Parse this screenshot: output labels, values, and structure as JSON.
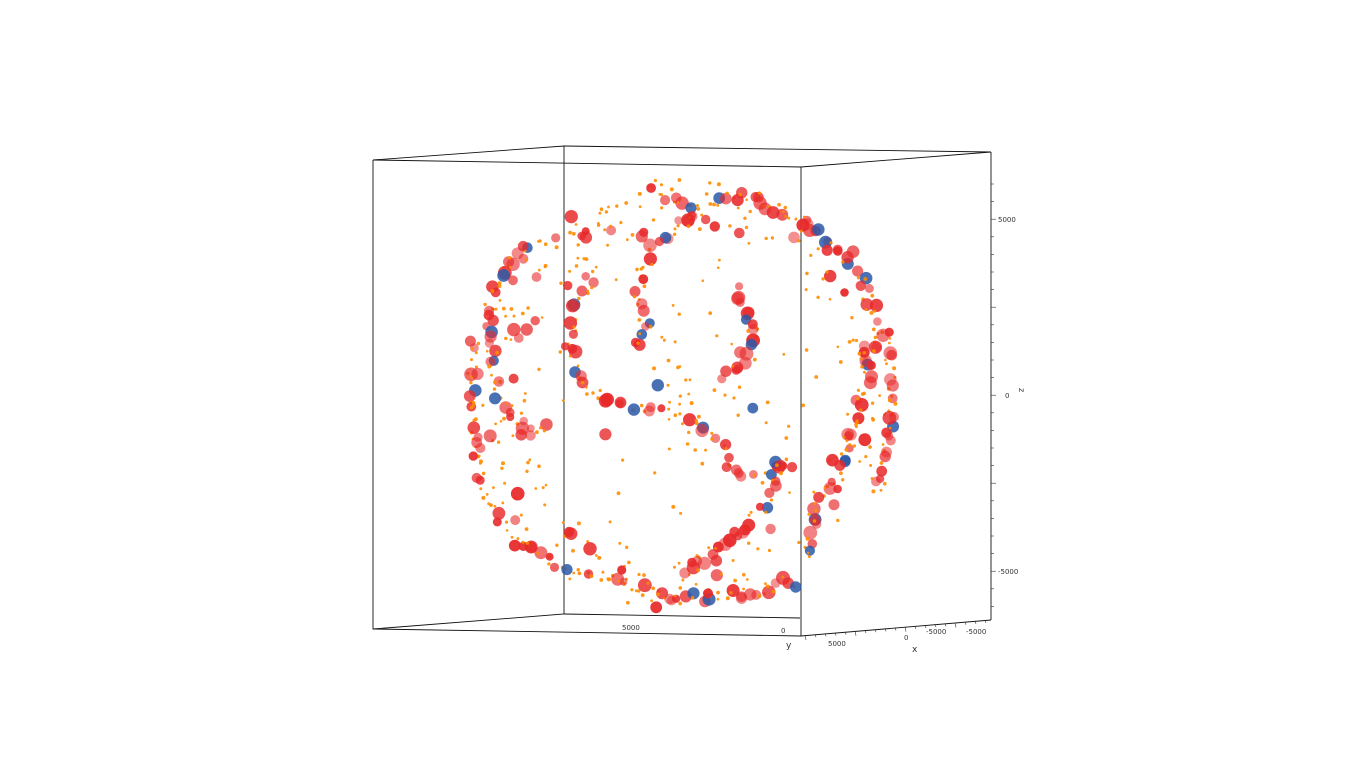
{
  "chart_data": {
    "type": "scatter",
    "title": "",
    "view": "3d-globe",
    "axes": {
      "x": {
        "label": "x",
        "ticks": [
          "5000",
          "0",
          "-5000",
          "-5000"
        ],
        "range": [
          -6500,
          6500
        ]
      },
      "y": {
        "label": "y",
        "ticks": [
          "5000",
          "0"
        ],
        "range": [
          -6500,
          6500
        ]
      },
      "z": {
        "label": "z",
        "ticks": [
          "5000",
          "0",
          "-5000"
        ],
        "range": [
          -6500,
          6500
        ]
      }
    },
    "grid": false,
    "legend": "none",
    "marker_classes": [
      {
        "class": "small",
        "color": "#ff8c00"
      },
      {
        "class": "medium",
        "color": "#e8292a"
      },
      {
        "class": "large",
        "color": "#2b58a8"
      }
    ],
    "sample_points": [
      {
        "z": 5000,
        "x": -3000,
        "class": "medium"
      },
      {
        "z": 3600,
        "x": -4500,
        "class": "medium"
      },
      {
        "z": 2000,
        "x": -4800,
        "class": "medium"
      },
      {
        "z": 500,
        "x": -5200,
        "class": "medium"
      },
      {
        "z": -900,
        "x": -4200,
        "class": "medium"
      },
      {
        "z": -1200,
        "x": -2400,
        "class": "medium"
      },
      {
        "z": 300,
        "x": -800,
        "class": "large"
      },
      {
        "z": -400,
        "x": 2100,
        "class": "large"
      },
      {
        "z": -2200,
        "x": 3300,
        "class": "medium"
      },
      {
        "z": -4200,
        "x": 1800,
        "class": "medium"
      },
      {
        "z": -5500,
        "x": 1000,
        "class": "medium"
      },
      {
        "z": -3800,
        "x": 4000,
        "class": "large"
      },
      {
        "z": -1200,
        "x": 5000,
        "class": "medium"
      },
      {
        "z": 1300,
        "x": 5500,
        "class": "medium"
      },
      {
        "z": 4000,
        "x": 5000,
        "class": "large"
      },
      {
        "z": 5500,
        "x": 3000,
        "class": "medium"
      },
      {
        "z": 2500,
        "x": 800,
        "class": "small"
      },
      {
        "z": -3000,
        "x": -2000,
        "class": "small"
      }
    ]
  }
}
